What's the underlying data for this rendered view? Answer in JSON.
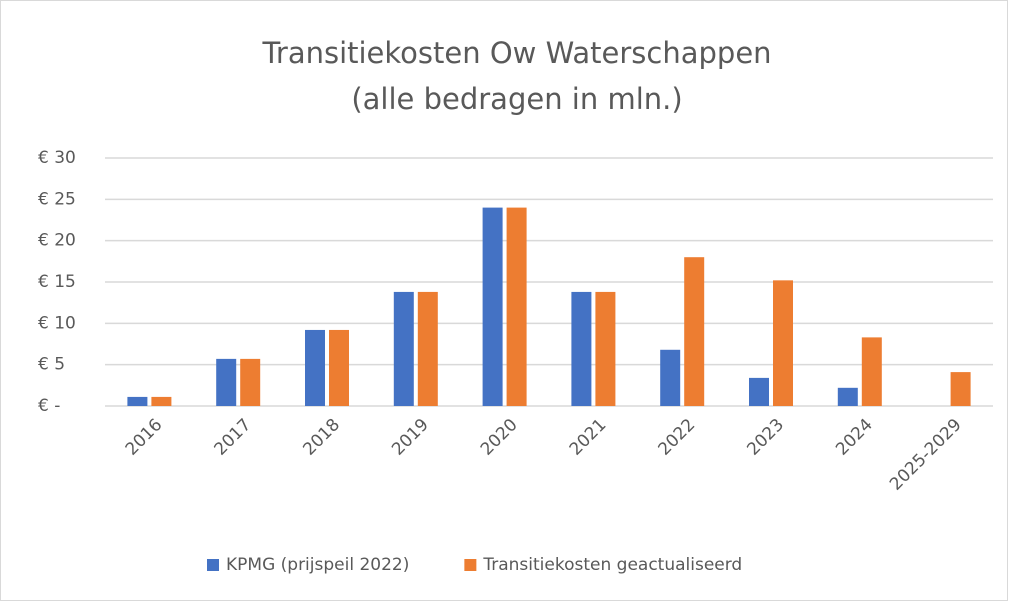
{
  "chart_data": {
    "type": "bar",
    "title": "Transitiekosten Ow Waterschappen",
    "subtitle": "(alle bedragen in mln.)",
    "categories": [
      "2016",
      "2017",
      "2018",
      "2019",
      "2020",
      "2021",
      "2022",
      "2023",
      "2024",
      "2025-2029"
    ],
    "series": [
      {
        "name": "KPMG (prijspeil 2022)",
        "color": "#4472c4",
        "values": [
          1.1,
          5.7,
          9.2,
          13.8,
          24,
          13.8,
          6.8,
          3.4,
          2.2,
          null
        ]
      },
      {
        "name": "Transitiekosten geactualiseerd",
        "color": "#ed7d31",
        "values": [
          1.1,
          5.7,
          9.2,
          13.8,
          24,
          13.8,
          18,
          15.2,
          8.3,
          4.1
        ]
      }
    ],
    "ylim": [
      0,
      30
    ],
    "yticks": [
      {
        "value": 0,
        "label": "€ -"
      },
      {
        "value": 5,
        "label": "€ 5"
      },
      {
        "value": 10,
        "label": "€ 10"
      },
      {
        "value": 15,
        "label": "€ 15"
      },
      {
        "value": 20,
        "label": "€ 20"
      },
      {
        "value": 25,
        "label": "€ 25"
      },
      {
        "value": 30,
        "label": "€ 30"
      }
    ],
    "grid": true,
    "legend": "bottom"
  }
}
